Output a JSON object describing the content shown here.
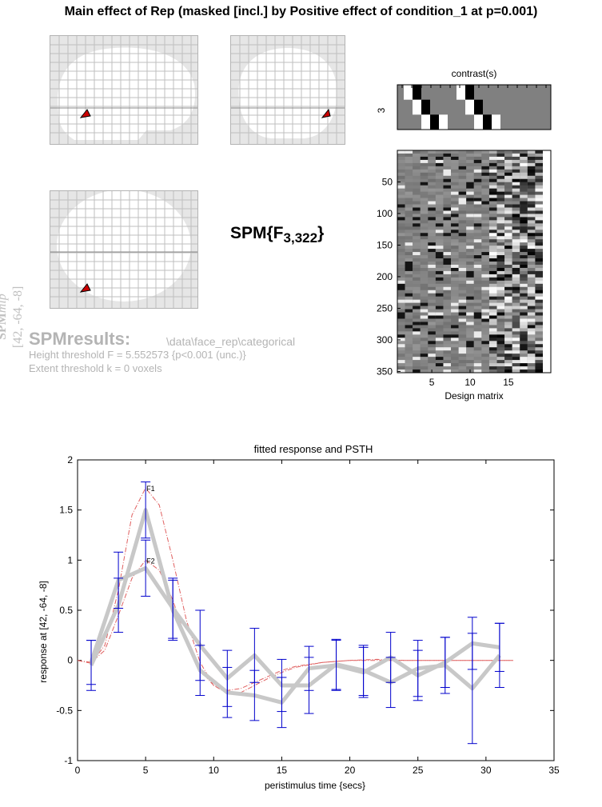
{
  "header": {
    "title": "Main effect of Rep (masked [incl.] by Positive effect of condition_1 at p=0.001)"
  },
  "mip": {
    "label_spm": "SPM",
    "label_mip": "mip",
    "coords": "[42, -64, -8]"
  },
  "stat": {
    "base": "SPM{F",
    "sub": "3,322",
    "close": "}"
  },
  "results": {
    "title": "SPMresults:",
    "path": "\\data\\face_rep\\categorical",
    "height_threshold": "Height threshold F = 5.552573  {p<0.001 (unc.)}",
    "extent_threshold": "Extent threshold k = 0 voxels"
  },
  "design": {
    "contrast_title": "contrast(s)",
    "contrast_label": "3",
    "xlabel": "Design matrix",
    "xticks": [
      "5",
      "10",
      "15"
    ],
    "yticks": [
      "50",
      "100",
      "150",
      "200",
      "250",
      "300",
      "350"
    ]
  },
  "colors": {
    "fitted": "#c8c8c8",
    "errorbar": "#0000cc",
    "pst_dash": "#e06060",
    "blob": "#cc0000"
  },
  "chart_data": {
    "type": "line",
    "title": "fitted response and PSTH",
    "xlabel": "peristimulus time {secs}",
    "ylabel": "response at [42, -64, -8]",
    "xlim": [
      0,
      35
    ],
    "ylim": [
      -1,
      2
    ],
    "xticks": [
      0,
      5,
      10,
      15,
      20,
      25,
      30,
      35
    ],
    "yticks": [
      -1,
      -0.5,
      0,
      0.5,
      1,
      1.5,
      2
    ],
    "annotations": [
      {
        "text": "F1",
        "x": 5,
        "y": 1.72
      },
      {
        "text": "F2",
        "x": 5,
        "y": 1.0
      }
    ],
    "series": [
      {
        "kind": "fitted",
        "x": [
          1,
          3,
          5,
          7,
          9,
          11,
          13,
          15,
          17,
          19,
          21,
          23,
          25,
          27,
          29,
          31
        ],
        "y": [
          -0.05,
          0.55,
          1.5,
          0.5,
          -0.1,
          -0.32,
          -0.35,
          -0.42,
          -0.08,
          -0.05,
          -0.12,
          0.03,
          -0.15,
          -0.02,
          0.17,
          0.13
        ]
      },
      {
        "kind": "fitted",
        "x": [
          1,
          3,
          5,
          7,
          9,
          11,
          13,
          15,
          17,
          19,
          21,
          23,
          25,
          27,
          29,
          31
        ],
        "y": [
          -0.02,
          0.8,
          0.92,
          0.52,
          0.15,
          -0.18,
          0.05,
          -0.25,
          -0.25,
          -0.04,
          -0.1,
          -0.22,
          -0.08,
          -0.05,
          -0.28,
          0.05
        ]
      },
      {
        "kind": "psth",
        "x": [
          1,
          3,
          5,
          7,
          9,
          11,
          13,
          15,
          17,
          19,
          21,
          23,
          25,
          27,
          29,
          31
        ],
        "y": [
          -0.05,
          0.55,
          1.5,
          0.5,
          -0.1,
          -0.32,
          -0.35,
          -0.42,
          -0.08,
          -0.05,
          -0.12,
          0.03,
          -0.15,
          -0.02,
          0.17,
          0.13
        ],
        "err": [
          0.25,
          0.27,
          0.28,
          0.3,
          0.25,
          0.25,
          0.25,
          0.25,
          0.22,
          0.25,
          0.25,
          0.25,
          0.25,
          0.25,
          0.26,
          0.24
        ]
      },
      {
        "kind": "psth",
        "x": [
          1,
          3,
          5,
          7,
          9,
          11,
          13,
          15,
          17,
          19,
          21,
          23,
          25,
          27,
          29,
          31
        ],
        "y": [
          -0.02,
          0.8,
          0.92,
          0.52,
          0.15,
          -0.18,
          0.05,
          -0.25,
          -0.25,
          -0.04,
          -0.1,
          -0.22,
          -0.08,
          -0.05,
          -0.28,
          0.05
        ],
        "err": [
          0.22,
          0.28,
          0.28,
          0.3,
          0.35,
          0.28,
          0.27,
          0.26,
          0.28,
          0.25,
          0.25,
          0.25,
          0.28,
          0.28,
          0.55,
          0.32
        ]
      },
      {
        "kind": "dashed",
        "x": [
          0,
          1,
          2,
          3,
          4,
          5,
          6,
          7,
          8,
          9,
          10,
          11,
          12,
          13,
          14,
          15,
          16,
          18,
          20,
          22,
          24,
          26,
          28,
          30,
          32
        ],
        "y": [
          0,
          -0.03,
          0.15,
          0.7,
          1.45,
          1.72,
          1.55,
          1.0,
          0.4,
          -0.02,
          -0.25,
          -0.33,
          -0.32,
          -0.25,
          -0.18,
          -0.12,
          -0.07,
          -0.02,
          0.0,
          0.01,
          0.0,
          0.0,
          0.0,
          0.0,
          0.0
        ]
      },
      {
        "kind": "dashed",
        "x": [
          0,
          1,
          2,
          3,
          4,
          5,
          6,
          7,
          8,
          9,
          10,
          11,
          12,
          13,
          14,
          15,
          16,
          18,
          20,
          22,
          24,
          26,
          28,
          30,
          32
        ],
        "y": [
          0,
          -0.02,
          0.1,
          0.45,
          0.82,
          1.0,
          0.9,
          0.6,
          0.2,
          -0.1,
          -0.25,
          -0.3,
          -0.28,
          -0.22,
          -0.16,
          -0.1,
          -0.06,
          -0.02,
          0.0,
          0.0,
          0.0,
          0.0,
          0.0,
          0.0,
          0.0
        ]
      }
    ]
  }
}
